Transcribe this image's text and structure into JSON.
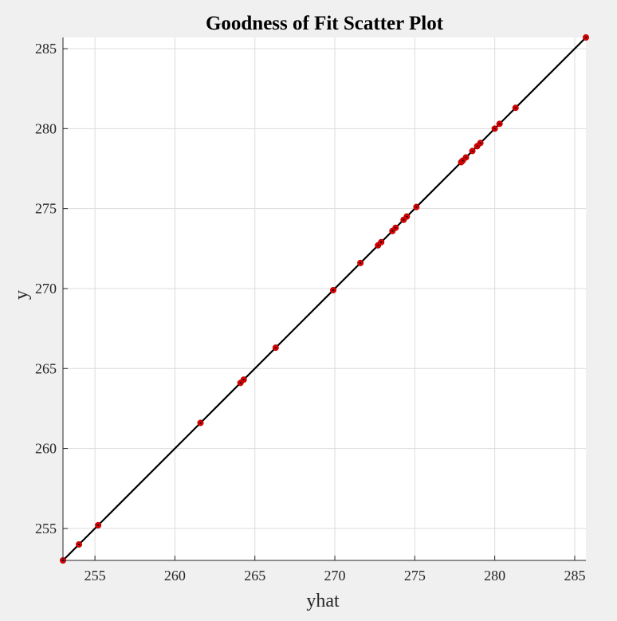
{
  "chart_data": {
    "type": "scatter",
    "title": "Goodness of Fit Scatter Plot",
    "xlabel": "yhat",
    "ylabel": "y",
    "xlim": [
      253,
      285.7
    ],
    "ylim": [
      253,
      285.7
    ],
    "xticks": [
      255,
      260,
      265,
      270,
      275,
      280,
      285
    ],
    "yticks": [
      255,
      260,
      265,
      270,
      275,
      280,
      285
    ],
    "grid": true,
    "legend": "none",
    "colors": {
      "points": "#e00000",
      "fit_line": "#000000",
      "grid": "#dcdcdc",
      "axes_bg": "#ffffff",
      "figure_bg": "#f0f0f0"
    },
    "fit_line": {
      "x": [
        253,
        285.7
      ],
      "y": [
        253,
        285.7
      ]
    },
    "points": {
      "x": [
        253.0,
        254.0,
        255.2,
        261.6,
        264.1,
        264.3,
        266.3,
        269.9,
        271.6,
        272.7,
        272.9,
        273.6,
        273.8,
        274.3,
        274.5,
        275.1,
        277.9,
        278.0,
        278.2,
        278.6,
        278.9,
        279.1,
        280.0,
        280.3,
        281.3,
        285.7
      ],
      "y": [
        253.0,
        254.0,
        255.2,
        261.6,
        264.1,
        264.3,
        266.3,
        269.9,
        271.6,
        272.7,
        272.9,
        273.6,
        273.8,
        274.3,
        274.5,
        275.1,
        277.9,
        278.0,
        278.2,
        278.6,
        278.9,
        279.1,
        280.0,
        280.3,
        281.3,
        285.7
      ]
    }
  }
}
